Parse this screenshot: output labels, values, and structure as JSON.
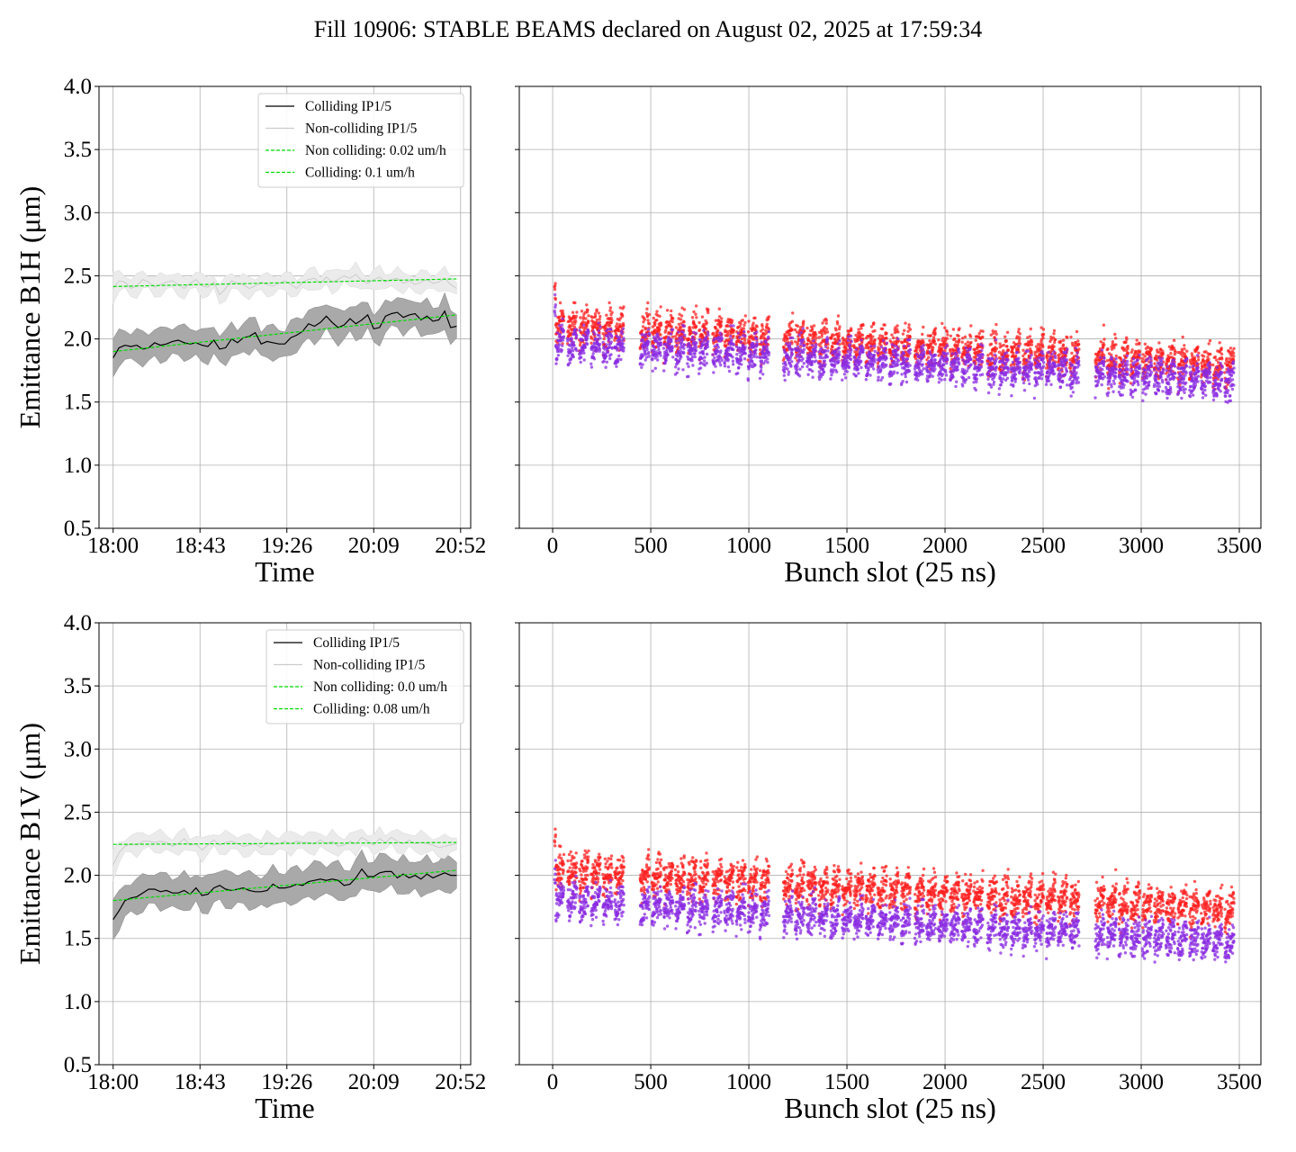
{
  "figure": {
    "title": "Fill 10906: STABLE BEAMS declared on August 02, 2025 at 17:59:34"
  },
  "colors": {
    "colliding_line": "#000000",
    "noncolliding_line": "#cccccc",
    "fit_line": "#00dd00",
    "colliding_band": "#a9a9a9",
    "noncolliding_band": "#ebebeb",
    "scatter_upper": "#ff2020",
    "scatter_lower": "#8a2be2",
    "grid": "#b0b0b0"
  },
  "chart_data": [
    {
      "id": "b1h-time",
      "type": "line",
      "xlabel": "Time",
      "ylabel": "Emittance B1H (μm)",
      "ylim": [
        0.5,
        4.0
      ],
      "yticks": [
        "0.5",
        "1.0",
        "1.5",
        "2.0",
        "2.5",
        "3.0",
        "3.5",
        "4.0"
      ],
      "x_ticks": [
        "18:00",
        "18:43",
        "19:26",
        "20:09",
        "20:52"
      ],
      "x_tick_minutes": [
        0,
        43,
        86,
        129,
        172
      ],
      "xlim_minutes": [
        -7,
        177
      ],
      "grid": true,
      "legend_position": "top-right",
      "legend": [
        {
          "label": "Colliding IP1/5",
          "style": "colliding"
        },
        {
          "label": "Non-colliding IP1/5",
          "style": "noncolliding"
        },
        {
          "label": "Non colliding: 0.02 um/h",
          "style": "fit"
        },
        {
          "label": "Colliding: 0.1 um/h",
          "style": "fit"
        }
      ],
      "series": [
        {
          "name": "Colliding IP1/5",
          "kind": "line",
          "x_start": 0,
          "x_end": 170,
          "values": [
            1.85,
            1.93,
            1.95,
            1.94,
            1.95,
            1.92,
            1.93,
            1.97,
            1.95,
            1.96,
            1.98,
            1.99,
            1.97,
            1.96,
            1.97,
            1.95,
            1.94,
            1.99,
            1.92,
            1.93,
            2.0,
            1.97,
            2.01,
            2.02,
            2.05,
            1.96,
            1.98,
            1.97,
            1.96,
            1.96,
            2.01,
            2.03,
            2.06,
            2.12,
            2.1,
            2.13,
            2.18,
            2.13,
            2.09,
            2.11,
            2.16,
            2.12,
            2.15,
            2.19,
            2.08,
            2.09,
            2.18,
            2.2,
            2.21,
            2.17,
            2.19,
            2.2,
            2.15,
            2.18,
            2.14,
            2.15,
            2.22,
            2.09,
            2.1
          ],
          "band_halfwidth": 0.12
        },
        {
          "name": "Non-colliding IP1/5",
          "kind": "line",
          "x_start": 0,
          "x_end": 170,
          "values": [
            2.4,
            2.46,
            2.45,
            2.4,
            2.42,
            2.47,
            2.45,
            2.41,
            2.43,
            2.45,
            2.46,
            2.43,
            2.4,
            2.44,
            2.47,
            2.42,
            2.41,
            2.45,
            2.35,
            2.4,
            2.46,
            2.44,
            2.43,
            2.4,
            2.42,
            2.45,
            2.43,
            2.42,
            2.44,
            2.46,
            2.43,
            2.4,
            2.45,
            2.47,
            2.48,
            2.44,
            2.49,
            2.45,
            2.47,
            2.5,
            2.48,
            2.51,
            2.46,
            2.44,
            2.47,
            2.49,
            2.45,
            2.47,
            2.48,
            2.44,
            2.46,
            2.43,
            2.45,
            2.47,
            2.44,
            2.45,
            2.48,
            2.43,
            2.4
          ],
          "band_halfwidth": 0.07
        },
        {
          "name": "Non colliding: 0.02 um/h",
          "kind": "fit",
          "x": [
            0,
            170
          ],
          "values": [
            2.415,
            2.475
          ]
        },
        {
          "name": "Colliding: 0.1 um/h",
          "kind": "fit",
          "x": [
            0,
            170
          ],
          "values": [
            1.9,
            2.19
          ]
        }
      ]
    },
    {
      "id": "b1h-bunch",
      "type": "scatter",
      "xlabel": "Bunch slot (25 ns)",
      "ylim": [
        0.5,
        4.0
      ],
      "xlim": [
        -170,
        3610
      ],
      "xticks": [
        0,
        500,
        1000,
        1500,
        2000,
        2500,
        3000,
        3500
      ],
      "x_tick_labels": [
        "0",
        "500",
        "1000",
        "1500",
        "2000",
        "2500",
        "3000",
        "3500"
      ],
      "grid": true,
      "trains": [
        0,
        66,
        126,
        186,
        246,
        306,
        436,
        496,
        556,
        616,
        676,
        736,
        806,
        866,
        926,
        986,
        1046,
        1166,
        1226,
        1286,
        1346,
        1406,
        1466,
        1526,
        1586,
        1646,
        1706,
        1766,
        1836,
        1896,
        1956,
        2016,
        2076,
        2136,
        2206,
        2266,
        2326,
        2386,
        2446,
        2506,
        2566,
        2626,
        2756,
        2816,
        2876,
        2936,
        2996,
        3056,
        3116,
        3176,
        3236,
        3296,
        3356,
        3416
      ],
      "train_length": 48,
      "series": [
        {
          "name": "",
          "color": "#ff2020",
          "mean_start": 2.12,
          "mean_end": 1.8,
          "spread": 0.13
        },
        {
          "name": "",
          "color": "#8a2be2",
          "mean_start": 1.98,
          "mean_end": 1.68,
          "spread": 0.12
        }
      ]
    },
    {
      "id": "b1v-time",
      "type": "line",
      "xlabel": "Time",
      "ylabel": "Emittance B1V (μm)",
      "ylim": [
        0.5,
        4.0
      ],
      "yticks": [
        "0.5",
        "1.0",
        "1.5",
        "2.0",
        "2.5",
        "3.0",
        "3.5",
        "4.0"
      ],
      "x_ticks": [
        "18:00",
        "18:43",
        "19:26",
        "20:09",
        "20:52"
      ],
      "x_tick_minutes": [
        0,
        43,
        86,
        129,
        172
      ],
      "xlim_minutes": [
        -7,
        177
      ],
      "grid": true,
      "legend_position": "top-right",
      "legend": [
        {
          "label": "Colliding IP1/5",
          "style": "colliding"
        },
        {
          "label": "Non-colliding IP1/5",
          "style": "noncolliding"
        },
        {
          "label": "Non colliding: 0.0 um/h",
          "style": "fit"
        },
        {
          "label": "Colliding: 0.08 um/h",
          "style": "fit"
        }
      ],
      "series": [
        {
          "name": "Colliding IP1/5",
          "kind": "line",
          "x_start": 0,
          "x_end": 170,
          "values": [
            1.65,
            1.72,
            1.8,
            1.82,
            1.83,
            1.86,
            1.89,
            1.89,
            1.87,
            1.88,
            1.86,
            1.86,
            1.88,
            1.85,
            1.9,
            1.84,
            1.85,
            1.9,
            1.92,
            1.89,
            1.88,
            1.89,
            1.9,
            1.88,
            1.87,
            1.87,
            1.88,
            1.93,
            1.9,
            1.9,
            1.91,
            1.93,
            1.92,
            1.95,
            1.96,
            1.97,
            1.96,
            1.97,
            1.96,
            1.92,
            1.93,
            1.98,
            2.05,
            1.99,
            1.99,
            2.02,
            2.03,
            2.03,
            1.98,
            2.01,
            1.98,
            2.0,
            1.97,
            2.01,
            1.98,
            2.0,
            2.02,
            2.0,
            2.0
          ],
          "band_halfwidth": 0.13
        },
        {
          "name": "Non-colliding IP1/5",
          "kind": "line",
          "x_start": 0,
          "x_end": 170,
          "values": [
            2.08,
            2.18,
            2.23,
            2.25,
            2.24,
            2.27,
            2.27,
            2.26,
            2.27,
            2.26,
            2.23,
            2.25,
            2.29,
            2.24,
            2.25,
            2.2,
            2.24,
            2.28,
            2.24,
            2.26,
            2.27,
            2.25,
            2.23,
            2.24,
            2.25,
            2.22,
            2.26,
            2.24,
            2.25,
            2.27,
            2.25,
            2.27,
            2.26,
            2.26,
            2.25,
            2.28,
            2.25,
            2.27,
            2.23,
            2.24,
            2.27,
            2.25,
            2.3,
            2.27,
            2.24,
            2.29,
            2.26,
            2.3,
            2.27,
            2.25,
            2.28,
            2.25,
            2.26,
            2.25,
            2.24,
            2.22,
            2.23,
            2.24,
            2.25
          ],
          "band_halfwidth": 0.07
        },
        {
          "name": "Non colliding: 0.0 um/h",
          "kind": "fit",
          "x": [
            0,
            170
          ],
          "values": [
            2.245,
            2.26
          ]
        },
        {
          "name": "Colliding: 0.08 um/h",
          "kind": "fit",
          "x": [
            0,
            170
          ],
          "values": [
            1.8,
            2.04
          ]
        }
      ]
    },
    {
      "id": "b1v-bunch",
      "type": "scatter",
      "xlabel": "Bunch slot (25 ns)",
      "ylim": [
        0.5,
        4.0
      ],
      "xlim": [
        -170,
        3610
      ],
      "xticks": [
        0,
        500,
        1000,
        1500,
        2000,
        2500,
        3000,
        3500
      ],
      "x_tick_labels": [
        "0",
        "500",
        "1000",
        "1500",
        "2000",
        "2500",
        "3000",
        "3500"
      ],
      "grid": true,
      "trains": [
        0,
        66,
        126,
        186,
        246,
        306,
        436,
        496,
        556,
        616,
        676,
        736,
        806,
        866,
        926,
        986,
        1046,
        1166,
        1226,
        1286,
        1346,
        1406,
        1466,
        1526,
        1586,
        1646,
        1706,
        1766,
        1836,
        1896,
        1956,
        2016,
        2076,
        2136,
        2206,
        2266,
        2326,
        2386,
        2446,
        2506,
        2566,
        2626,
        2756,
        2816,
        2876,
        2936,
        2996,
        3056,
        3116,
        3176,
        3236,
        3296,
        3356,
        3416
      ],
      "train_length": 48,
      "series": [
        {
          "name": "",
          "color": "#ff2020",
          "mean_start": 2.05,
          "mean_end": 1.74,
          "spread": 0.13
        },
        {
          "name": "",
          "color": "#8a2be2",
          "mean_start": 1.82,
          "mean_end": 1.48,
          "spread": 0.12
        }
      ]
    }
  ]
}
